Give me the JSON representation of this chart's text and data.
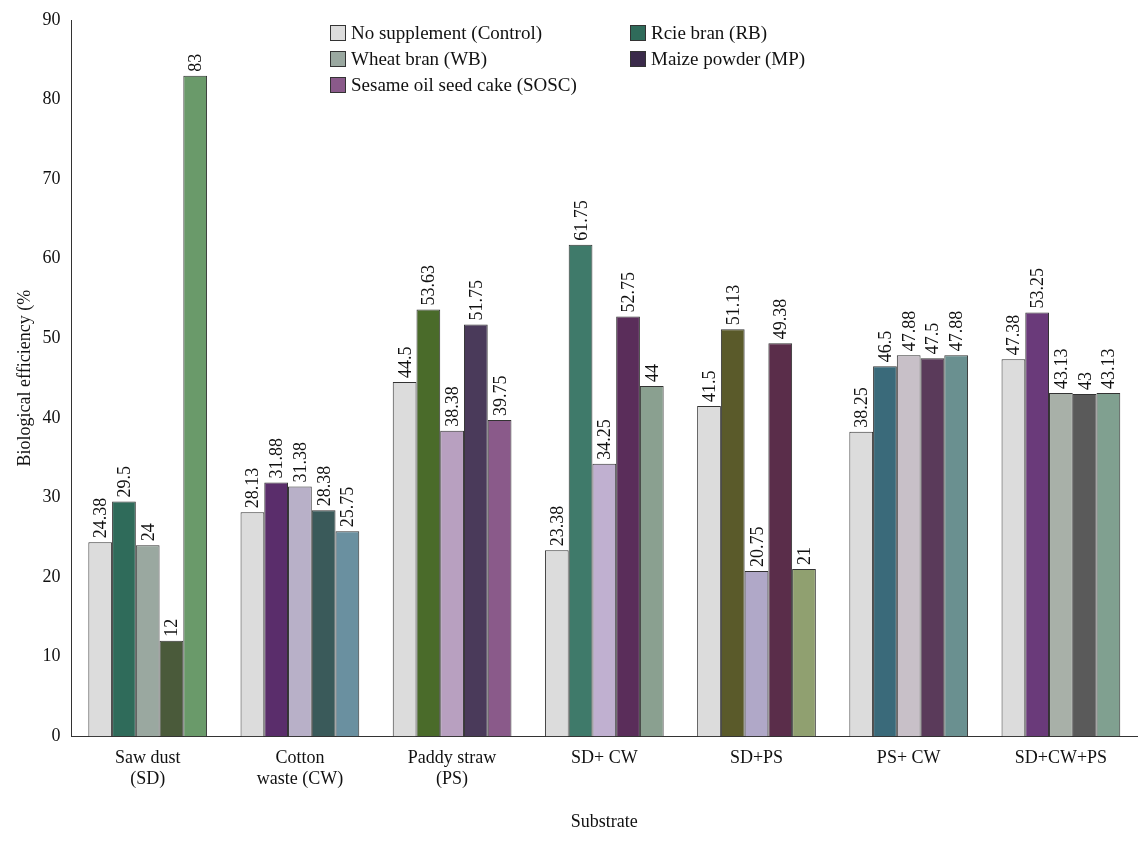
{
  "chart_data": {
    "type": "bar",
    "xlabel": "Substrate",
    "ylabel": "Biological efficiency (%",
    "categories": [
      "Saw dust\n(SD)",
      "Cotton\nwaste (CW)",
      "Paddy straw\n(PS)",
      "SD+ CW",
      "SD+PS",
      "PS+ CW",
      "SD+CW+PS"
    ],
    "series": [
      {
        "name": "No supplement (Control)",
        "color": "#dcdcdc",
        "colors": [
          "#dcdcdc",
          "#dcdcdc",
          "#dcdcdc",
          "#dcdcdc",
          "#dcdcdc",
          "#dcdcdc",
          "#dcdcdc"
        ],
        "values": [
          24.38,
          28.13,
          44.5,
          23.38,
          41.5,
          38.25,
          47.38
        ]
      },
      {
        "name": "Rcie bran (RB)",
        "color": "#2f6b5a",
        "colors": [
          "#2f6b5a",
          "#5a2d6b",
          "#4a6b2a",
          "#3f7a6a",
          "#5a5a2a",
          "#3a6a7a",
          "#6a3a7a"
        ],
        "values": [
          29.5,
          31.88,
          53.63,
          61.75,
          51.13,
          46.5,
          53.25
        ]
      },
      {
        "name": "Wheat bran (WB)",
        "color": "#9aa8a0",
        "colors": [
          "#9aa8a0",
          "#b8b0c8",
          "#b8a0c0",
          "#c0b0d0",
          "#b0a8c8",
          "#c8c0c8",
          "#a8b0a8"
        ],
        "values": [
          24,
          31.38,
          38.38,
          34.25,
          20.75,
          47.88,
          43.13
        ]
      },
      {
        "name": "Maize powder (MP)",
        "color": "#3a2a4a",
        "colors": [
          "#4a5a3a",
          "#3a5a5a",
          "#4a3a5a",
          "#5a2d5a",
          "#5a2d4a",
          "#5a3a5a",
          "#5a5a5a"
        ],
        "values": [
          12,
          28.38,
          51.75,
          52.75,
          49.38,
          47.5,
          43
        ]
      },
      {
        "name": "Sesame oil seed cake (SOSC)",
        "color": "#8a5a8a",
        "colors": [
          "#6a9a6a",
          "#6a90a0",
          "#8a5a8a",
          "#8aa090",
          "#90a070",
          "#6a9090",
          "#80a090"
        ],
        "values": [
          83,
          25.75,
          39.75,
          44,
          21,
          47.88,
          43.13
        ]
      }
    ],
    "ylim": [
      0,
      90
    ],
    "yticks": [
      0,
      10,
      20,
      30,
      40,
      50,
      60,
      70,
      80,
      90
    ],
    "grid": false,
    "legend": "top",
    "data_labels": true
  }
}
